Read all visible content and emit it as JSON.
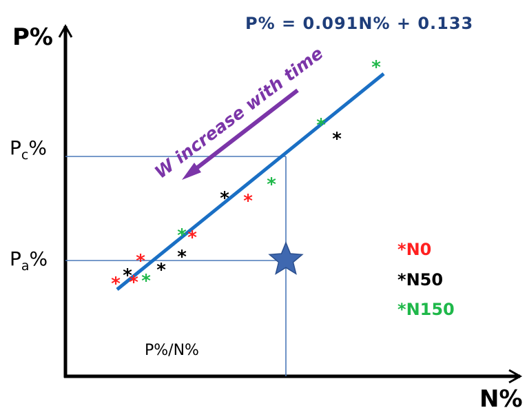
{
  "equation": "P% = 0.091N% + 0.133",
  "y_axis_label": "P%",
  "x_axis_label": "N%",
  "pc_label": {
    "main": "P",
    "sub": "c",
    "suffix": "%"
  },
  "pa_label": {
    "main": "P",
    "sub": "a",
    "suffix": "%"
  },
  "arrow_label": "W increase with time",
  "ratio_label": "P%/N%",
  "legend": [
    {
      "marker": "*",
      "label": "N0",
      "color": "#ff2020"
    },
    {
      "marker": "*",
      "label": "N50",
      "color": "#000000"
    },
    {
      "marker": "*",
      "label": "N150",
      "color": "#1fb84a"
    }
  ],
  "colors": {
    "axis": "#000000",
    "regression_line": "#1a6fc4",
    "guide_lines": "#4a78b8",
    "arrow": "#7b35a8",
    "equation": "#1f3e7a",
    "star": "#3f68b0"
  },
  "point_marker": "*",
  "points": {
    "N0": [],
    "N50": [],
    "N150": []
  },
  "icons": {
    "star": "star-icon"
  }
}
